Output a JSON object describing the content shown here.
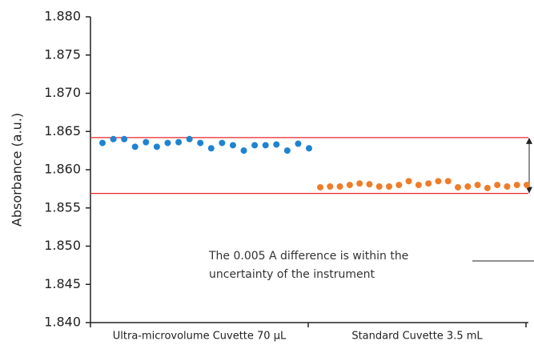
{
  "chart_data": {
    "type": "scatter",
    "y_label": "Absorbance (a.u.)",
    "categories": [
      "Ultra-microvolume Cuvette 70 µL",
      "Standard Cuvette 3.5 mL"
    ],
    "series": [
      {
        "color": "#1f83d0",
        "values": [
          1.8635,
          1.864,
          1.864,
          1.863,
          1.8636,
          1.863,
          1.8635,
          1.8636,
          1.864,
          1.8635,
          1.8628,
          1.8635,
          1.8632,
          1.8625,
          1.8632,
          1.8632,
          1.8633,
          1.8625,
          1.8634,
          1.8628
        ]
      },
      {
        "color": "#ee7d2b",
        "values": [
          1.8577,
          1.8578,
          1.8578,
          1.858,
          1.8582,
          1.8581,
          1.8578,
          1.8578,
          1.858,
          1.8585,
          1.858,
          1.8582,
          1.8585,
          1.8585,
          1.8577,
          1.8578,
          1.858,
          1.8576,
          1.858,
          1.8578,
          1.858,
          1.858
        ]
      }
    ],
    "reference_lines": [
      1.8642,
      1.8569
    ],
    "reference_color": "#e8262a",
    "annotation": [
      "The 0.005 A difference is within the",
      "uncertainty of the instrument"
    ],
    "ylim": [
      1.84,
      1.88
    ],
    "yticks": [
      {
        "value": 1.84,
        "label": "1.840"
      },
      {
        "value": 1.845,
        "label": "1.845"
      },
      {
        "value": 1.85,
        "label": "1.850"
      },
      {
        "value": 1.855,
        "label": "1.855"
      },
      {
        "value": 1.86,
        "label": "1.860"
      },
      {
        "value": 1.865,
        "label": "1.865"
      },
      {
        "value": 1.87,
        "label": "1.870"
      },
      {
        "value": 1.875,
        "label": "1.875"
      },
      {
        "value": 1.88,
        "label": "1.880"
      }
    ]
  }
}
